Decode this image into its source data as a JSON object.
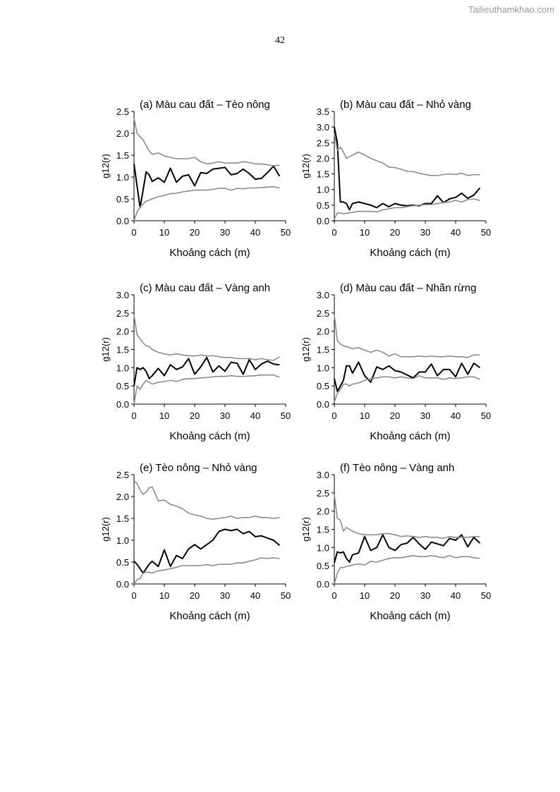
{
  "watermark": "Tailieuthamkhao.com",
  "page_number": "42",
  "colors": {
    "observed": "#000000",
    "envelope": "#8c8c8c"
  },
  "chart_data": [
    {
      "type": "line",
      "panel": "a",
      "title": "(a) Màu cau đất – Tèo nông",
      "xlabel": "Khoảng cách (m)",
      "ylabel": "g12(r)",
      "xlim": [
        0,
        50
      ],
      "ylim": [
        0,
        2.5
      ],
      "xticks": [
        "0",
        "10",
        "20",
        "30",
        "40",
        "50"
      ],
      "yticks": [
        "0.0",
        "0.5",
        "1.0",
        "1.5",
        "2.0",
        "2.5"
      ],
      "x": [
        0,
        1,
        2,
        3,
        4,
        5,
        6,
        8,
        10,
        12,
        14,
        16,
        18,
        20,
        22,
        24,
        26,
        28,
        30,
        32,
        34,
        36,
        38,
        40,
        42,
        44,
        46,
        48
      ],
      "series": [
        {
          "name": "observed",
          "values": [
            1.3,
            0.8,
            0.3,
            0.7,
            1.12,
            1.05,
            0.9,
            0.98,
            0.88,
            1.2,
            0.88,
            1.02,
            1.05,
            0.8,
            1.1,
            1.08,
            1.18,
            1.2,
            1.22,
            1.05,
            1.08,
            1.18,
            1.08,
            0.95,
            0.97,
            1.1,
            1.25,
            1.02
          ]
        },
        {
          "name": "upper",
          "values": [
            2.35,
            2.0,
            1.92,
            1.85,
            1.72,
            1.6,
            1.52,
            1.55,
            1.48,
            1.45,
            1.42,
            1.42,
            1.42,
            1.45,
            1.35,
            1.3,
            1.32,
            1.35,
            1.32,
            1.32,
            1.32,
            1.35,
            1.33,
            1.3,
            1.3,
            1.28,
            1.26,
            1.27
          ]
        },
        {
          "name": "lower",
          "values": [
            0,
            0.2,
            0.32,
            0.38,
            0.45,
            0.47,
            0.5,
            0.55,
            0.58,
            0.62,
            0.63,
            0.66,
            0.68,
            0.7,
            0.7,
            0.7,
            0.72,
            0.74,
            0.74,
            0.7,
            0.74,
            0.73,
            0.75,
            0.75,
            0.76,
            0.77,
            0.78,
            0.75
          ]
        }
      ]
    },
    {
      "type": "line",
      "panel": "b",
      "title": "(b) Màu cau đất – Nhỏ vàng",
      "xlabel": "Khoảng cách (m)",
      "ylabel": "g12(r)",
      "xlim": [
        0,
        50
      ],
      "ylim": [
        0,
        3.5
      ],
      "xticks": [
        "0",
        "10",
        "20",
        "30",
        "40",
        "50"
      ],
      "yticks": [
        "0.0",
        "0.5",
        "1.0",
        "1.5",
        "2.0",
        "2.5",
        "3.0",
        "3.5"
      ],
      "x": [
        0,
        1,
        2,
        3,
        4,
        5,
        6,
        8,
        10,
        12,
        14,
        16,
        18,
        20,
        22,
        24,
        26,
        28,
        30,
        32,
        34,
        36,
        38,
        40,
        42,
        44,
        46,
        48
      ],
      "series": [
        {
          "name": "observed",
          "values": [
            3.0,
            2.5,
            0.6,
            0.6,
            0.55,
            0.35,
            0.55,
            0.6,
            0.55,
            0.5,
            0.42,
            0.55,
            0.45,
            0.55,
            0.5,
            0.48,
            0.5,
            0.48,
            0.55,
            0.55,
            0.8,
            0.58,
            0.7,
            0.75,
            0.88,
            0.72,
            0.82,
            1.05
          ]
        },
        {
          "name": "upper",
          "values": [
            2.8,
            2.25,
            2.35,
            2.2,
            2.0,
            2.05,
            2.1,
            2.2,
            2.1,
            2.0,
            1.92,
            1.85,
            1.72,
            1.7,
            1.65,
            1.58,
            1.57,
            1.52,
            1.48,
            1.45,
            1.45,
            1.48,
            1.5,
            1.48,
            1.52,
            1.45,
            1.48,
            1.47
          ]
        },
        {
          "name": "lower",
          "values": [
            0.05,
            0.25,
            0.25,
            0.22,
            0.24,
            0.25,
            0.27,
            0.3,
            0.3,
            0.3,
            0.28,
            0.35,
            0.38,
            0.42,
            0.42,
            0.45,
            0.48,
            0.5,
            0.52,
            0.52,
            0.55,
            0.58,
            0.6,
            0.65,
            0.6,
            0.68,
            0.7,
            0.65
          ]
        }
      ]
    },
    {
      "type": "line",
      "panel": "c",
      "title": "(c) Màu cau đất – Vàng anh",
      "xlabel": "Khoảng cách (m)",
      "ylabel": "g12(r)",
      "xlim": [
        0,
        50
      ],
      "ylim": [
        0,
        3.0
      ],
      "xticks": [
        "0",
        "10",
        "20",
        "30",
        "40",
        "50"
      ],
      "yticks": [
        "0.0",
        "0.5",
        "1.0",
        "1.5",
        "2.0",
        "2.5",
        "3.0"
      ],
      "x": [
        0,
        1,
        2,
        3,
        4,
        5,
        6,
        8,
        10,
        12,
        14,
        16,
        18,
        20,
        22,
        24,
        26,
        28,
        30,
        32,
        34,
        36,
        38,
        40,
        42,
        44,
        46,
        48
      ],
      "series": [
        {
          "name": "observed",
          "values": [
            0.5,
            1.0,
            0.95,
            1.0,
            0.9,
            0.7,
            0.78,
            0.98,
            0.78,
            1.08,
            0.95,
            1.02,
            1.25,
            0.82,
            1.02,
            1.28,
            0.88,
            1.05,
            0.9,
            1.15,
            1.12,
            0.82,
            1.22,
            0.95,
            1.1,
            1.18,
            1.1,
            1.08
          ]
        },
        {
          "name": "upper",
          "values": [
            2.45,
            1.9,
            1.8,
            1.68,
            1.6,
            1.58,
            1.5,
            1.42,
            1.38,
            1.35,
            1.38,
            1.35,
            1.33,
            1.32,
            1.35,
            1.32,
            1.33,
            1.3,
            1.28,
            1.28,
            1.25,
            1.25,
            1.25,
            1.22,
            1.25,
            1.22,
            1.2,
            1.3
          ]
        },
        {
          "name": "lower",
          "values": [
            0,
            0.5,
            0.4,
            0.55,
            0.65,
            0.6,
            0.55,
            0.6,
            0.62,
            0.65,
            0.62,
            0.68,
            0.7,
            0.7,
            0.72,
            0.73,
            0.75,
            0.76,
            0.76,
            0.78,
            0.76,
            0.76,
            0.77,
            0.78,
            0.8,
            0.8,
            0.8,
            0.74
          ]
        }
      ]
    },
    {
      "type": "line",
      "panel": "d",
      "title": "(d) Màu cau đất – Nhãn rừng",
      "xlabel": "Khoảng cách (m)",
      "ylabel": "g12(r)",
      "xlim": [
        0,
        50
      ],
      "ylim": [
        0,
        3.0
      ],
      "xticks": [
        "0",
        "10",
        "20",
        "30",
        "40",
        "50"
      ],
      "yticks": [
        "0.0",
        "0.5",
        "1.0",
        "1.5",
        "2.0",
        "2.5",
        "3.0"
      ],
      "x": [
        0,
        1,
        2,
        3,
        4,
        5,
        6,
        8,
        10,
        12,
        14,
        16,
        18,
        20,
        22,
        24,
        26,
        28,
        30,
        32,
        34,
        36,
        38,
        40,
        42,
        44,
        46,
        48
      ],
      "series": [
        {
          "name": "observed",
          "values": [
            0.7,
            0.35,
            0.5,
            0.65,
            1.05,
            1.05,
            0.85,
            1.15,
            0.78,
            0.6,
            1.02,
            0.95,
            1.05,
            0.92,
            0.88,
            0.8,
            0.72,
            0.88,
            0.88,
            1.1,
            0.78,
            0.95,
            0.95,
            0.75,
            1.12,
            0.82,
            1.12,
            1.0
          ]
        },
        {
          "name": "upper",
          "values": [
            2.45,
            1.75,
            1.65,
            1.6,
            1.58,
            1.55,
            1.52,
            1.55,
            1.48,
            1.42,
            1.48,
            1.42,
            1.32,
            1.38,
            1.3,
            1.3,
            1.3,
            1.32,
            1.3,
            1.32,
            1.3,
            1.3,
            1.32,
            1.3,
            1.3,
            1.28,
            1.35,
            1.35
          ]
        },
        {
          "name": "lower",
          "values": [
            0.05,
            0.3,
            0.4,
            0.55,
            0.55,
            0.5,
            0.55,
            0.58,
            0.65,
            0.7,
            0.72,
            0.75,
            0.75,
            0.72,
            0.75,
            0.72,
            0.7,
            0.78,
            0.72,
            0.72,
            0.72,
            0.68,
            0.72,
            0.7,
            0.72,
            0.75,
            0.75,
            0.68
          ]
        }
      ]
    },
    {
      "type": "line",
      "panel": "e",
      "title": "(e) Tèo nông – Nhỏ vàng",
      "xlabel": "Khoảng cách (m)",
      "ylabel": "g12(r)",
      "xlim": [
        0,
        50
      ],
      "ylim": [
        0,
        2.5
      ],
      "xticks": [
        "0",
        "10",
        "20",
        "30",
        "40",
        "50"
      ],
      "yticks": [
        "0.0",
        "0.5",
        "1.0",
        "1.5",
        "2.0",
        "2.5"
      ],
      "x": [
        0,
        1,
        2,
        3,
        4,
        5,
        6,
        8,
        10,
        12,
        14,
        16,
        18,
        20,
        22,
        24,
        26,
        28,
        30,
        32,
        34,
        36,
        38,
        40,
        42,
        44,
        46,
        48
      ],
      "series": [
        {
          "name": "observed",
          "values": [
            0.52,
            0.45,
            0.35,
            0.25,
            0.35,
            0.45,
            0.52,
            0.4,
            0.78,
            0.4,
            0.65,
            0.58,
            0.8,
            0.9,
            0.8,
            0.9,
            1.0,
            1.2,
            1.25,
            1.22,
            1.25,
            1.15,
            1.2,
            1.08,
            1.1,
            1.05,
            1.0,
            0.88
          ]
        },
        {
          "name": "upper",
          "values": [
            2.35,
            2.3,
            2.15,
            2.05,
            2.1,
            2.2,
            2.22,
            1.9,
            1.92,
            1.82,
            1.78,
            1.72,
            1.62,
            1.58,
            1.55,
            1.5,
            1.48,
            1.5,
            1.52,
            1.55,
            1.5,
            1.52,
            1.52,
            1.55,
            1.52,
            1.52,
            1.5,
            1.52
          ]
        },
        {
          "name": "lower",
          "values": [
            0,
            0.1,
            0.12,
            0.25,
            0.27,
            0.27,
            0.25,
            0.3,
            0.32,
            0.35,
            0.38,
            0.42,
            0.42,
            0.42,
            0.42,
            0.44,
            0.42,
            0.45,
            0.45,
            0.45,
            0.48,
            0.48,
            0.52,
            0.55,
            0.6,
            0.58,
            0.6,
            0.58
          ]
        }
      ]
    },
    {
      "type": "line",
      "panel": "f",
      "title": "(f) Tèo nông – Vàng anh",
      "xlabel": "Khoảng cách (m)",
      "ylabel": "g12(r)",
      "xlim": [
        0,
        50
      ],
      "ylim": [
        0,
        3.0
      ],
      "xticks": [
        "0",
        "10",
        "20",
        "30",
        "40",
        "50"
      ],
      "yticks": [
        "0.0",
        "0.5",
        "1.0",
        "1.5",
        "2.0",
        "2.5",
        "3.0"
      ],
      "x": [
        0,
        1,
        2,
        3,
        4,
        5,
        6,
        8,
        10,
        12,
        14,
        16,
        18,
        20,
        22,
        24,
        26,
        28,
        30,
        32,
        34,
        36,
        38,
        40,
        42,
        44,
        46,
        48
      ],
      "series": [
        {
          "name": "observed",
          "values": [
            0.58,
            0.88,
            0.85,
            0.88,
            0.7,
            0.6,
            0.8,
            0.85,
            1.3,
            0.92,
            1.0,
            1.35,
            1.0,
            0.92,
            1.08,
            1.12,
            1.28,
            1.1,
            0.95,
            1.15,
            1.1,
            1.05,
            1.25,
            1.2,
            1.35,
            1.02,
            1.28,
            1.12
          ]
        },
        {
          "name": "upper",
          "values": [
            2.45,
            1.8,
            1.75,
            1.45,
            1.55,
            1.5,
            1.45,
            1.38,
            1.35,
            1.35,
            1.35,
            1.38,
            1.38,
            1.35,
            1.3,
            1.32,
            1.3,
            1.28,
            1.3,
            1.28,
            1.28,
            1.25,
            1.3,
            1.28,
            1.28,
            1.28,
            1.3,
            1.3
          ]
        },
        {
          "name": "lower",
          "values": [
            0,
            0.3,
            0.45,
            0.45,
            0.48,
            0.5,
            0.52,
            0.55,
            0.52,
            0.62,
            0.6,
            0.65,
            0.7,
            0.72,
            0.72,
            0.75,
            0.78,
            0.75,
            0.75,
            0.78,
            0.75,
            0.72,
            0.78,
            0.72,
            0.75,
            0.75,
            0.72,
            0.7
          ]
        }
      ]
    }
  ]
}
